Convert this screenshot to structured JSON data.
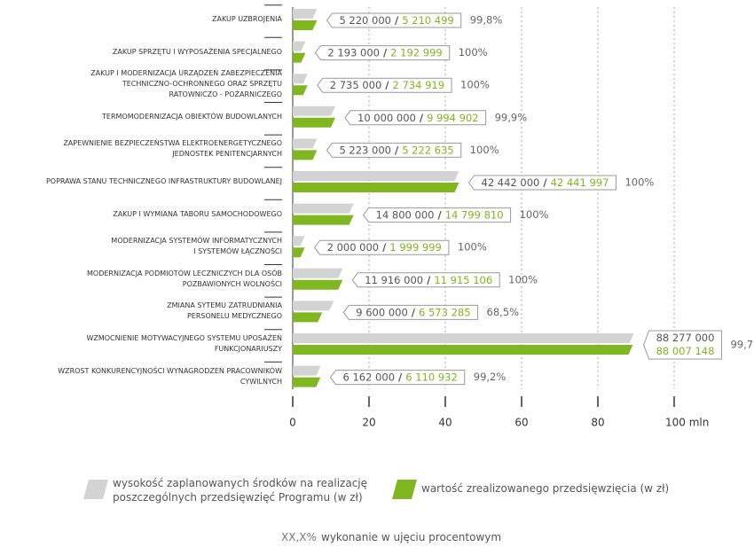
{
  "chart_data": {
    "type": "bar",
    "categories": [
      "ZAKUP UZBROJENIA",
      "ZAKUP SPRZĘTU I WYPOSAŻENIA SPECJALNEGO",
      "ZAKUP I MODERNIZACJA URZĄDZEŃ ZABEZPIECZENIA\nTECHNICZNO-OCHRONNEGO ORAZ SPRZĘTU\nRATOWNICZO - POŻARNICZEGO",
      "TERMOMODERNIZACJA OBIEKTÓW BUDOWLANYCH",
      "ZAPEWNIENIE BEZPIECZEŃSTWA ELEKTROENERGETYCZNEGO\nJEDNOSTEK PENITENCJARNYCH",
      "POPRAWA STANU TECHNICZNEGO INFRASTRUKTURY BUDOWLANEJ",
      "ZAKUP I WYMIANA TABORU SAMOCHODOWEGO",
      "MODERNIZACJA SYSTEMÓW INFORMATYCZNYCH\nI SYSTEMÓW ŁĄCZNOŚCI",
      "MODERNIZACJA PODMIOTÓW LECZNICZYCH DLA OSÓB\nPOZBAWIONYCH WOLNOŚCI",
      "ZMIANA SYTEMU ZATRUDNIANIA\nPERSONELU MEDYCZNEGO",
      "WZMOCNIENIE MOTYWACYJNEGO SYSTEMU UPOSAŻEŃ\nFUNKCJONARIUSZY",
      "WZROST KONKURENCYJNOŚCI WYNAGRODZEŃ PRACOWNIKÓW\nCYWILNYCH"
    ],
    "series": [
      {
        "name": "wysokość zaplanowanych środków na realizację poszczególnych przedsięwzięć Programu (w zł)",
        "color": "#d3d3d3",
        "values": [
          5.22,
          2.193,
          2.735,
          10,
          5.223,
          42.442,
          14.8,
          2,
          11.916,
          9.6,
          88.277,
          6.162
        ],
        "value_labels": [
          "5 220 000",
          "2 193 000",
          "2 735 000",
          "10 000 000",
          "5 223 000",
          "42 442 000",
          "14 800 000",
          "2 000 000",
          "11 916 000",
          "9 600 000",
          "88 277 000",
          "6 162 000"
        ]
      },
      {
        "name": "wartość zrealizowanego przedsięwzięcia (w zł)",
        "color": "#80b61f",
        "values": [
          5.210499,
          2.192999,
          2.734919,
          9.994902,
          5.222635,
          42.441997,
          14.79981,
          1.999999,
          11.915106,
          6.573285,
          88.007148,
          6.110932
        ],
        "value_labels": [
          "5 210 499",
          "2 192 999",
          "2 734 919",
          "9 994 902",
          "5 222 635",
          "42 441 997",
          "14 799 810",
          "1 999 999",
          "11 915 106",
          "6 573 285",
          "88 007 148",
          "6 110 932"
        ]
      }
    ],
    "percent_labels": [
      "99,8%",
      "100%",
      "100%",
      "99,9%",
      "100%",
      "100%",
      "100%",
      "100%",
      "100%",
      "68,5%",
      "99,7%",
      "99,2%"
    ],
    "percent_legend": {
      "symbol": "XX,X%",
      "text": "wykonanie w ujęciu procentowym"
    },
    "xlim": [
      0,
      100
    ],
    "xticks": [
      0,
      20,
      40,
      60,
      80,
      {
        "value": 100,
        "label": "100 mln"
      }
    ],
    "grid": true
  }
}
